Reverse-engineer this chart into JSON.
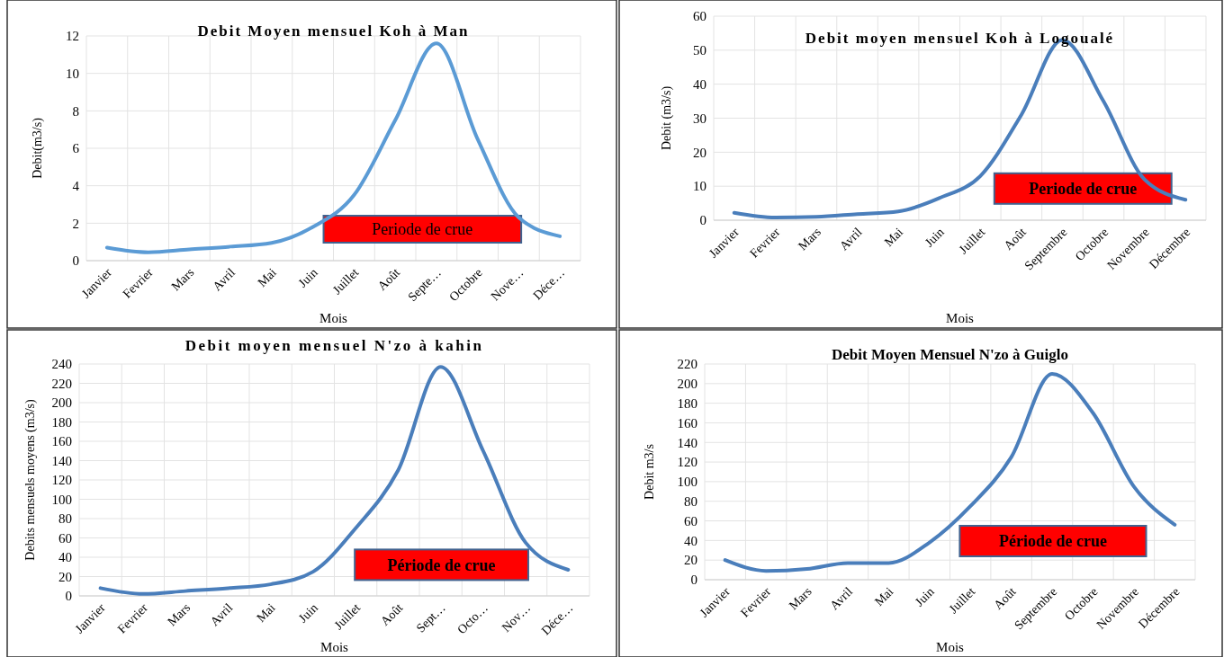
{
  "chart_data": [
    {
      "type": "line",
      "title": "Debit Moyen mensuel Koh à  Man",
      "xlabel": "Mois",
      "ylabel": "Debit(m3/s)",
      "categories": [
        "Janvier",
        "Fevrier",
        "Mars",
        "Avril",
        "Mai",
        "Juin",
        "Juillet",
        "Août",
        "Septe…",
        "Octobre",
        "Nove…",
        "Déce…"
      ],
      "series": [
        {
          "color": "#5b9bd5",
          "values": [
            0.7,
            0.45,
            0.6,
            0.75,
            0.95,
            1.8,
            3.5,
            7.5,
            11.6,
            6.5,
            2.3,
            1.3
          ]
        }
      ],
      "ylim": [
        0,
        12
      ],
      "yticks": [
        0,
        2,
        4,
        6,
        8,
        10,
        12
      ],
      "grid": true,
      "marker": "none",
      "annotations": [
        "Periode de crue"
      ]
    },
    {
      "type": "line",
      "title": "Debit moyen mensuel Koh à Logoualé",
      "xlabel": "Mois",
      "ylabel": "Debit (m3/s)",
      "categories": [
        "Janvier",
        "Fevrier",
        "Mars",
        "Avril",
        "Mai",
        "Juin",
        "Juillet",
        "Août",
        "Septembre",
        "Octobre",
        "Novembre",
        "Décembre"
      ],
      "series": [
        {
          "color": "#4a7ebb",
          "values": [
            2.2,
            0.8,
            1,
            1.8,
            2.6,
            6.5,
            13,
            31,
            53,
            35,
            12,
            6
          ]
        }
      ],
      "ylim": [
        0,
        60
      ],
      "yticks": [
        0,
        10,
        20,
        30,
        40,
        50,
        60
      ],
      "grid": true,
      "marker": "none",
      "annotations": [
        "Periode de crue"
      ]
    },
    {
      "type": "line",
      "title": "Debit moyen mensuel N'zo à kahin",
      "xlabel": "Mois",
      "ylabel": "Debits mensuels moyens (m3/s)",
      "categories": [
        "Janvier",
        "Fevrier",
        "Mars",
        "Avril",
        "Mai",
        "Juin",
        "Juillet",
        "Août",
        "Sept…",
        "Octo…",
        "Nov…",
        "Déce…"
      ],
      "series": [
        {
          "color": "#4a7ebb",
          "values": [
            8,
            2,
            5,
            8,
            12,
            25,
            70,
            130,
            237,
            150,
            55,
            27
          ]
        }
      ],
      "ylim": [
        0,
        240
      ],
      "yticks": [
        0,
        20,
        40,
        60,
        80,
        100,
        120,
        140,
        160,
        180,
        200,
        220,
        240
      ],
      "grid": true,
      "marker": "none",
      "annotations": [
        "Période de crue"
      ]
    },
    {
      "type": "line",
      "title": "Debit Moyen Mensuel N'zo à Guiglo",
      "xlabel": "Mois",
      "ylabel": "Debit m3/s",
      "categories": [
        "Janvier",
        "Fevrier",
        "Mars",
        "Avril",
        "Mai",
        "Juin",
        "Juillet",
        "Août",
        "Septembre",
        "Octobre",
        "Novembre",
        "Décembre"
      ],
      "series": [
        {
          "color": "#4a7ebb",
          "values": [
            20,
            9,
            11,
            17,
            17,
            38,
            75,
            125,
            210,
            170,
            95,
            56
          ]
        }
      ],
      "ylim": [
        0,
        220
      ],
      "yticks": [
        0,
        20,
        40,
        60,
        80,
        100,
        120,
        140,
        160,
        180,
        200,
        220
      ],
      "grid": true,
      "marker": "none",
      "annotations": [
        "Période  de crue"
      ]
    }
  ]
}
